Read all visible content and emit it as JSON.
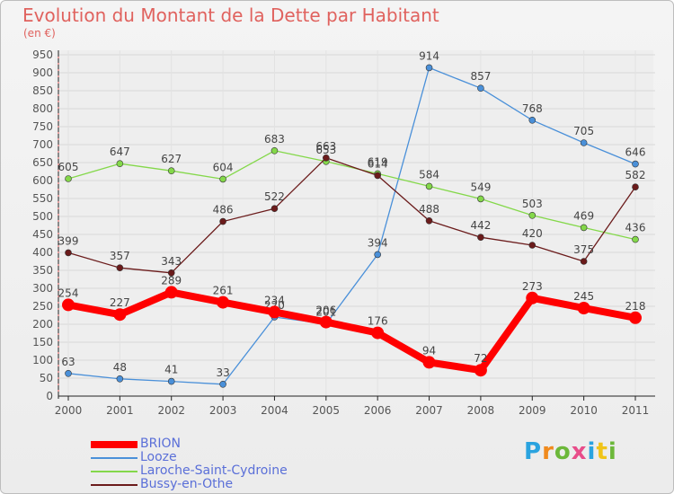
{
  "title": "Evolution du Montant de la Dette par Habitant",
  "subtitle": "(en €)",
  "logo": {
    "text": "Proxiti",
    "letter_colors": [
      "#2aa3df",
      "#f08a1d",
      "#6cb83a",
      "#e84d8a",
      "#2aa3df",
      "#f0c419",
      "#6cb83a"
    ]
  },
  "chart_data": {
    "type": "line",
    "title": "Evolution du Montant de la Dette par Habitant",
    "subtitle": "(en €)",
    "categories": [
      "2000",
      "2001",
      "2002",
      "2003",
      "2004",
      "2005",
      "2006",
      "2007",
      "2008",
      "2009",
      "2010",
      "2011"
    ],
    "ylim": [
      0,
      950
    ],
    "yticks": [
      0,
      50,
      100,
      150,
      200,
      250,
      300,
      350,
      400,
      450,
      500,
      550,
      600,
      650,
      700,
      750,
      800,
      850,
      900,
      950
    ],
    "grid": true,
    "legend_position": "bottom-left",
    "series": [
      {
        "name": "BRION",
        "color": "#ff0000",
        "values": [
          254,
          227,
          289,
          261,
          234,
          206,
          176,
          94,
          72,
          273,
          245,
          218
        ]
      },
      {
        "name": "Looze",
        "color": "#4a90d9",
        "values": [
          63,
          48,
          41,
          33,
          220,
          201,
          394,
          914,
          857,
          768,
          705,
          646
        ]
      },
      {
        "name": "Laroche-Saint-Cydroine",
        "color": "#84d84a",
        "values": [
          605,
          647,
          627,
          604,
          683,
          653,
          619,
          584,
          549,
          503,
          469,
          436
        ]
      },
      {
        "name": "Bussy-en-Othe",
        "color": "#6b1b1b",
        "values": [
          399,
          357,
          343,
          486,
          522,
          663,
          614,
          488,
          442,
          420,
          375,
          582
        ]
      }
    ]
  }
}
